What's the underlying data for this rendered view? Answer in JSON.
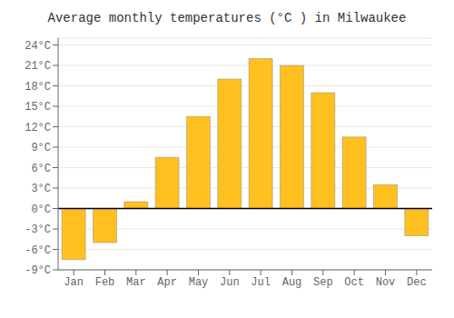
{
  "chart_data": {
    "type": "bar",
    "title": "Average monthly temperatures (°C ) in Milwaukee",
    "categories": [
      "Jan",
      "Feb",
      "Mar",
      "Apr",
      "May",
      "Jun",
      "Jul",
      "Aug",
      "Sep",
      "Oct",
      "Nov",
      "Dec"
    ],
    "values": [
      -7.5,
      -5.0,
      1.0,
      7.5,
      13.5,
      19.0,
      22.0,
      21.0,
      17.0,
      10.5,
      3.5,
      -4.0
    ],
    "color": "#FFC020",
    "ylim": [
      -9,
      25
    ],
    "yticks": [
      {
        "value": -9,
        "label": "-9°C"
      },
      {
        "value": -6,
        "label": "-6°C"
      },
      {
        "value": -3,
        "label": "-3°C"
      },
      {
        "value": 0,
        "label": "0°C"
      },
      {
        "value": 3,
        "label": "3°C"
      },
      {
        "value": 6,
        "label": "6°C"
      },
      {
        "value": 9,
        "label": "9°C"
      },
      {
        "value": 12,
        "label": "12°C"
      },
      {
        "value": 15,
        "label": "15°C"
      },
      {
        "value": 18,
        "label": "18°C"
      },
      {
        "value": 21,
        "label": "21°C"
      },
      {
        "value": 24,
        "label": "24°C"
      }
    ],
    "grid": true
  }
}
